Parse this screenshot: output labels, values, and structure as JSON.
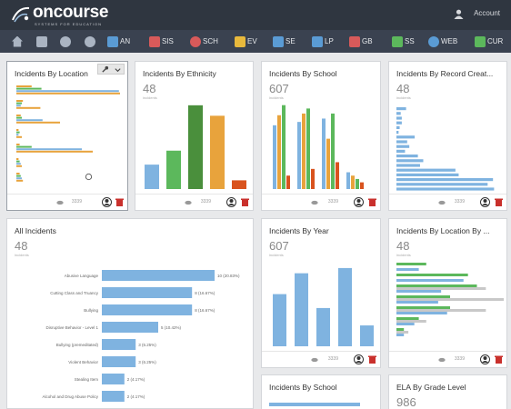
{
  "app": {
    "logo": "oncourse",
    "logo_sub": "SYSTEMS FOR EDUCATION",
    "user": "Account"
  },
  "nav": [
    {
      "label": "",
      "icon": "home-icon",
      "color": "#aab4c2"
    },
    {
      "label": "",
      "icon": "folder-icon",
      "color": "#aab4c2"
    },
    {
      "label": "",
      "icon": "pie-chart-icon",
      "color": "#aab4c2"
    },
    {
      "label": "",
      "icon": "gear-icon",
      "color": "#aab4c2"
    },
    {
      "label": "AN",
      "icon": "chart-icon",
      "color": "#5a9bd4"
    },
    {
      "label": "SIS",
      "icon": "students-icon",
      "color": "#d85a5a"
    },
    {
      "label": "SCH",
      "icon": "clock-icon",
      "color": "#d85a5a"
    },
    {
      "label": "EV",
      "icon": "check-icon",
      "color": "#e8b93c"
    },
    {
      "label": "SE",
      "icon": "person-icon",
      "color": "#5a9bd4"
    },
    {
      "label": "LP",
      "icon": "book-icon",
      "color": "#5a9bd4"
    },
    {
      "label": "GB",
      "icon": "gradebook-icon",
      "color": "#d85a5a"
    },
    {
      "label": "SS",
      "icon": "chart-icon",
      "color": "#5cb85c"
    },
    {
      "label": "WEB",
      "icon": "globe-icon",
      "color": "#5a9bd4"
    },
    {
      "label": "CUR",
      "icon": "curriculum-icon",
      "color": "#5cb85c"
    }
  ],
  "cards": {
    "location": {
      "title": "Incidents By Location",
      "views": "3339"
    },
    "ethnicity": {
      "title": "Incidents By Ethnicity",
      "count": "48",
      "sub": "incidents",
      "views": "3339"
    },
    "school": {
      "title": "Incidents By School",
      "count": "607",
      "sub": "incidents",
      "views": "3339"
    },
    "record": {
      "title": "Incidents By Record Creat...",
      "count": "48",
      "sub": "incidents",
      "views": "3339"
    },
    "all": {
      "title": "All Incidents",
      "count": "48",
      "sub": "incidents"
    },
    "year": {
      "title": "Incidents By Year",
      "count": "607",
      "sub": "incidents",
      "views": "3339"
    },
    "location2": {
      "title": "Incidents By Location By ...",
      "count": "48",
      "sub": "incidents",
      "views": "3339"
    },
    "school2": {
      "title": "Incidents By School"
    },
    "ela": {
      "title": "ELA By Grade Level",
      "count": "986"
    }
  },
  "chart_data": [
    {
      "type": "bar",
      "title": "Incidents By Location",
      "orientation": "horizontal",
      "colors": [
        "#e8a33c",
        "#5cb85c",
        "#7fb3e0"
      ],
      "values": [
        [
          14,
          23,
          94,
          95
        ],
        [
          6,
          5,
          4,
          22
        ],
        [
          4,
          5,
          24,
          40
        ],
        [
          2,
          3,
          2,
          5
        ],
        [
          3,
          14,
          60,
          70
        ],
        [
          2,
          3,
          4,
          5
        ],
        [
          3,
          4,
          5,
          6
        ]
      ]
    },
    {
      "type": "bar",
      "title": "Incidents By Ethnicity",
      "values": [
        14,
        22,
        48,
        42,
        5
      ],
      "colors": [
        "#7fb3e0",
        "#5cb85c",
        "#4a8f3c",
        "#e8a33c",
        "#d9531e"
      ]
    },
    {
      "type": "bar",
      "title": "Incidents By School",
      "series": [
        {
          "name": "",
          "color": "#7fb3e0",
          "values": [
            38,
            40,
            42,
            10
          ]
        },
        {
          "name": "",
          "color": "#e8a33c",
          "values": [
            44,
            45,
            30,
            8
          ]
        },
        {
          "name": "",
          "color": "#5cb85c",
          "values": [
            50,
            48,
            45,
            6
          ]
        },
        {
          "name": "",
          "color": "#d9531e",
          "values": [
            8,
            12,
            16,
            4
          ]
        }
      ]
    },
    {
      "type": "bar",
      "title": "Incidents By Record Creat...",
      "orientation": "horizontal",
      "values": [
        9,
        4,
        5,
        5,
        3,
        2,
        17,
        10,
        12,
        8,
        20,
        25,
        22,
        55,
        58,
        90,
        85,
        91
      ]
    },
    {
      "type": "bar",
      "title": "All Incidents",
      "orientation": "horizontal",
      "categories": [
        "Abusive Language",
        "Cutting Class and Truancy",
        "Bullying",
        "Disruptive Behavior - Level 1",
        "Bullying (premeditated)",
        "Violent Behavior",
        "Stealing Item",
        "Alcohol and Drug Abuse Policy"
      ],
      "values": [
        10,
        8,
        8,
        5,
        3,
        3,
        2,
        2
      ],
      "data_labels": [
        "10 (20.83%)",
        "8 (16.67%)",
        "8 (16.67%)",
        "5 (10.42%)",
        "3 (6.25%)",
        "3 (6.25%)",
        "2 (4.17%)",
        "2 (4.17%)"
      ]
    },
    {
      "type": "bar",
      "title": "Incidents By Year",
      "values": [
        30,
        42,
        22,
        45,
        12
      ]
    },
    {
      "type": "bar",
      "title": "Incidents By Location By ...",
      "orientation": "horizontal",
      "series": [
        {
          "name": "",
          "color": "#5cb85c",
          "values": [
            20,
            48,
            54,
            36,
            36,
            15,
            5
          ]
        },
        {
          "name": "",
          "color": "#c8c8c8",
          "values": [
            0,
            0,
            60,
            72,
            60,
            20,
            8
          ]
        },
        {
          "name": "",
          "color": "#7fb3e0",
          "values": [
            15,
            45,
            30,
            28,
            34,
            12,
            5
          ]
        }
      ]
    }
  ]
}
